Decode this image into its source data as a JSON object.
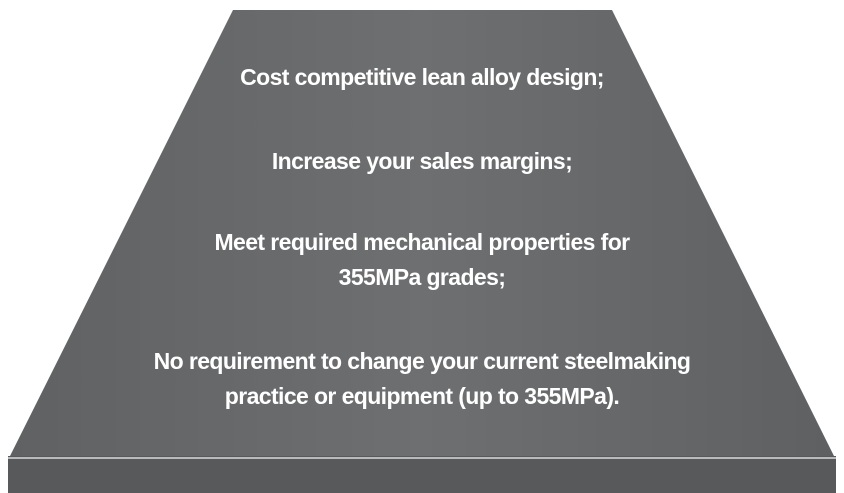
{
  "items": [
    {
      "lines": [
        "Cost competitive lean alloy design;"
      ]
    },
    {
      "lines": [
        "Increase your sales margins;"
      ]
    },
    {
      "lines": [
        "Meet required mechanical properties for",
        "355MPa grades;"
      ]
    },
    {
      "lines": [
        "No requirement to change your current steelmaking",
        "practice or equipment (up to 355MPa)."
      ]
    }
  ]
}
